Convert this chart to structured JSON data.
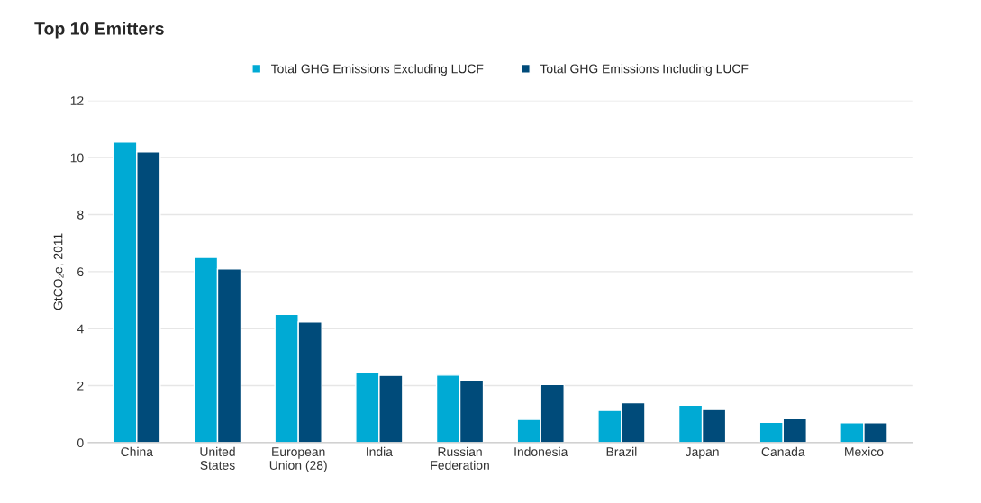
{
  "chart_data": {
    "type": "bar",
    "title": "Top 10 Emitters",
    "ylabel": "GtCO₂e, 2011",
    "categories": [
      "China",
      "United\nStates",
      "European\nUnion (28)",
      "India",
      "Russian\nFederation",
      "Indonesia",
      "Brazil",
      "Japan",
      "Canada",
      "Mexico"
    ],
    "series": [
      {
        "name": "Total GHG Emissions Excluding LUCF",
        "color": "#00aad4",
        "values": [
          10.55,
          6.5,
          4.5,
          2.46,
          2.37,
          0.82,
          1.13,
          1.31,
          0.71,
          0.7
        ]
      },
      {
        "name": "Total GHG Emissions Including LUCF",
        "color": "#004b7a",
        "values": [
          10.2,
          6.1,
          4.23,
          2.36,
          2.2,
          2.04,
          1.4,
          1.16,
          0.84,
          0.7
        ]
      }
    ],
    "ylim": [
      0,
      12
    ],
    "yticks": [
      0,
      2,
      4,
      6,
      8,
      10,
      12
    ],
    "grid": "y",
    "legend": "top"
  }
}
